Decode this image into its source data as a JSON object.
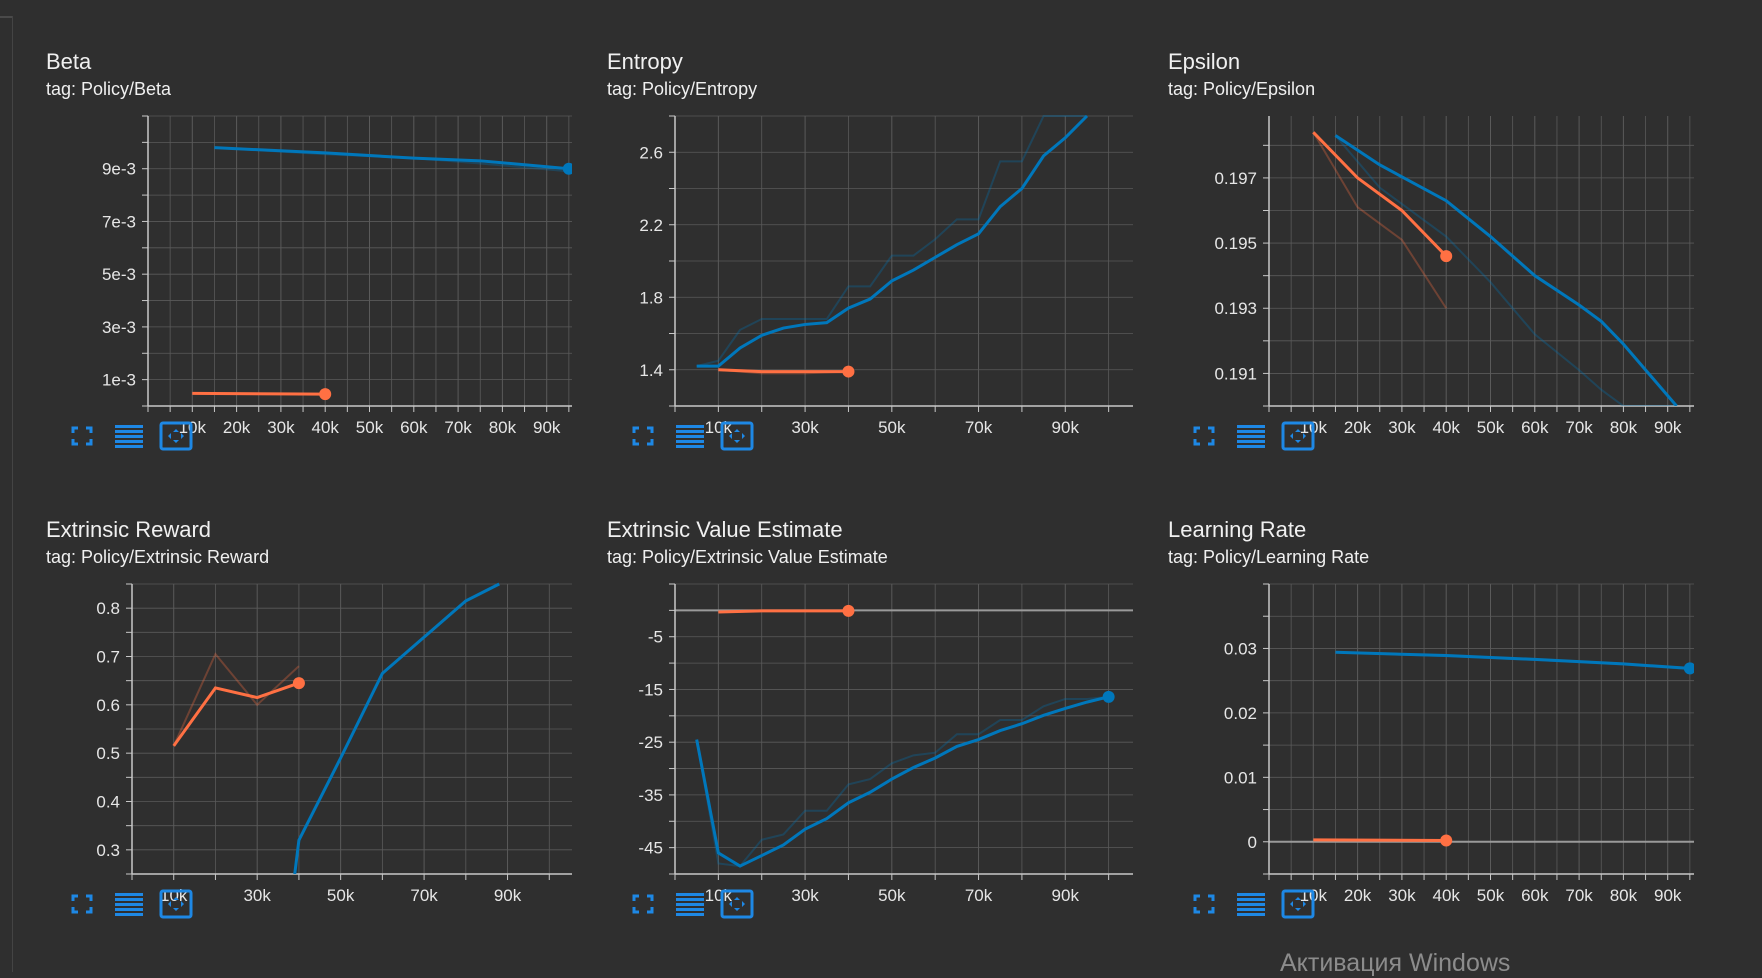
{
  "colors": {
    "orange": "#ff7043",
    "blue": "#0077bb",
    "grid": "#5a5a5a",
    "axis": "#c8c8c8",
    "background": "#2f2f2f"
  },
  "toolbar_icons": [
    "expand-icon",
    "data-list-icon",
    "fit-domain-icon"
  ],
  "watermark": "Активация Windows",
  "chart_data": [
    {
      "type": "line",
      "title": "Beta",
      "tag": "tag: Policy/Beta",
      "xlim": [
        0,
        100000
      ],
      "ylim": [
        0,
        0.011
      ],
      "xticks": [
        10000,
        20000,
        30000,
        40000,
        50000,
        60000,
        70000,
        80000,
        90000
      ],
      "xtick_labels": [
        "10k",
        "20k",
        "30k",
        "40k",
        "50k",
        "60k",
        "70k",
        "80k",
        "90k"
      ],
      "yticks": [
        0.001,
        0.003,
        0.005,
        0.007,
        0.009
      ],
      "ytick_labels": [
        "1e-3",
        "3e-3",
        "5e-3",
        "7e-3",
        "9e-3"
      ],
      "series": [
        {
          "color": "orange",
          "x": [
            10000,
            40000
          ],
          "y": [
            0.00048,
            0.00045
          ],
          "raw_y": [
            0.00048,
            0.00045
          ]
        },
        {
          "color": "blue",
          "x": [
            15000,
            40000,
            60000,
            75000,
            95000
          ],
          "y": [
            0.0098,
            0.0096,
            0.0094,
            0.0093,
            0.009
          ],
          "raw_y": [
            0.0098,
            0.00955,
            0.0094,
            0.0092,
            0.0089
          ]
        }
      ]
    },
    {
      "type": "line",
      "title": "Entropy",
      "tag": "tag: Policy/Entropy",
      "xlim": [
        0,
        110000
      ],
      "ylim": [
        1.2,
        2.8
      ],
      "xticks": [
        10000,
        30000,
        50000,
        70000,
        90000
      ],
      "xtick_labels": [
        "10k",
        "30k",
        "50k",
        "70k",
        "90k"
      ],
      "yticks": [
        1.4,
        1.8,
        2.2,
        2.6
      ],
      "ytick_labels": [
        "1.4",
        "1.8",
        "2.2",
        "2.6"
      ],
      "series": [
        {
          "color": "orange",
          "x": [
            10000,
            20000,
            30000,
            40000
          ],
          "y": [
            1.4,
            1.39,
            1.39,
            1.39
          ],
          "raw_y": [
            1.4,
            1.38,
            1.38,
            1.39
          ]
        },
        {
          "color": "blue",
          "x": [
            5000,
            10000,
            15000,
            20000,
            25000,
            30000,
            35000,
            40000,
            45000,
            50000,
            55000,
            60000,
            65000,
            70000,
            75000,
            80000,
            85000,
            90000,
            95000
          ],
          "y": [
            1.42,
            1.42,
            1.52,
            1.59,
            1.63,
            1.65,
            1.66,
            1.74,
            1.79,
            1.89,
            1.95,
            2.02,
            2.09,
            2.15,
            2.3,
            2.4,
            2.58,
            2.68,
            2.8
          ],
          "raw_y": [
            1.42,
            1.45,
            1.62,
            1.68,
            1.68,
            1.68,
            1.68,
            1.86,
            1.86,
            2.03,
            2.03,
            2.12,
            2.23,
            2.23,
            2.55,
            2.55,
            2.8,
            2.8,
            2.8
          ]
        }
      ]
    },
    {
      "type": "line",
      "title": "Epsilon",
      "tag": "tag: Policy/Epsilon",
      "xlim": [
        0,
        100000
      ],
      "ylim": [
        0.19,
        0.1989
      ],
      "xticks": [
        10000,
        20000,
        30000,
        40000,
        50000,
        60000,
        70000,
        80000,
        90000
      ],
      "xtick_labels": [
        "10k",
        "20k",
        "30k",
        "40k",
        "50k",
        "60k",
        "70k",
        "80k",
        "90k"
      ],
      "yticks": [
        0.191,
        0.193,
        0.195,
        0.197
      ],
      "ytick_labels": [
        "0.191",
        "0.193",
        "0.195",
        "0.197"
      ],
      "series": [
        {
          "color": "orange",
          "x": [
            10000,
            20000,
            30000,
            40000
          ],
          "y": [
            0.1984,
            0.197,
            0.196,
            0.1946
          ],
          "raw_y": [
            0.1984,
            0.1961,
            0.1951,
            0.193
          ]
        },
        {
          "color": "blue",
          "x": [
            15000,
            25000,
            40000,
            50000,
            60000,
            70000,
            75000,
            80000,
            92000
          ],
          "y": [
            0.1983,
            0.1974,
            0.1963,
            0.1952,
            0.194,
            0.1931,
            0.1926,
            0.1919,
            0.19
          ],
          "raw_y": [
            0.1983,
            0.1967,
            0.1952,
            0.1938,
            0.1922,
            0.1911,
            0.1905,
            0.19,
            0.19
          ]
        }
      ]
    },
    {
      "type": "line",
      "title": "Extrinsic Reward",
      "tag": "tag: Policy/Extrinsic Reward",
      "xlim": [
        0,
        110000
      ],
      "ylim": [
        0.25,
        0.85
      ],
      "xticks": [
        10000,
        30000,
        50000,
        70000,
        90000
      ],
      "xtick_labels": [
        "10k",
        "30k",
        "50k",
        "70k",
        "90k"
      ],
      "yticks": [
        0.3,
        0.4,
        0.5,
        0.6,
        0.7,
        0.8
      ],
      "ytick_labels": [
        "0.3",
        "0.4",
        "0.5",
        "0.6",
        "0.7",
        "0.8"
      ],
      "series": [
        {
          "color": "orange",
          "x": [
            10000,
            20000,
            30000,
            40000
          ],
          "y": [
            0.515,
            0.635,
            0.615,
            0.645
          ],
          "raw_y": [
            0.515,
            0.705,
            0.6,
            0.68
          ]
        },
        {
          "color": "blue",
          "x": [
            39000,
            40000,
            50000,
            60000,
            70000,
            80000,
            88000
          ],
          "y": [
            0.25,
            0.32,
            0.49,
            0.665,
            0.74,
            0.815,
            0.85
          ],
          "raw_y": [
            0.25,
            0.32,
            0.49,
            0.665,
            0.74,
            0.815,
            0.85
          ]
        }
      ]
    },
    {
      "type": "line",
      "title": "Extrinsic Value Estimate",
      "tag": "tag: Policy/Extrinsic Value Estimate",
      "xlim": [
        0,
        110000
      ],
      "ylim": [
        -50,
        5
      ],
      "xticks": [
        10000,
        30000,
        50000,
        70000,
        90000
      ],
      "xtick_labels": [
        "10k",
        "30k",
        "50k",
        "70k",
        "90k"
      ],
      "yticks": [
        -45,
        -35,
        -25,
        -15,
        -5
      ],
      "ytick_labels": [
        "-45",
        "-35",
        "-25",
        "-15",
        "-5"
      ],
      "series": [
        {
          "color": "orange",
          "x": [
            10000,
            20000,
            30000,
            40000
          ],
          "y": [
            -0.3,
            -0.1,
            -0.1,
            -0.1
          ],
          "raw_y": [
            -0.3,
            -0.1,
            -0.1,
            -0.1
          ]
        },
        {
          "color": "blue",
          "x": [
            5000,
            10000,
            15000,
            20000,
            25000,
            30000,
            35000,
            40000,
            45000,
            50000,
            55000,
            60000,
            65000,
            70000,
            75000,
            80000,
            85000,
            90000,
            95000,
            100000
          ],
          "y": [
            -24.5,
            -46,
            -48.5,
            -46.5,
            -44.5,
            -41.5,
            -39.5,
            -36.5,
            -34.5,
            -32,
            -29.8,
            -28,
            -25.8,
            -24.5,
            -22.8,
            -21.5,
            -19.9,
            -18.6,
            -17.4,
            -16.4
          ],
          "raw_y": [
            -24.5,
            -48,
            -48.5,
            -43.5,
            -42.5,
            -38,
            -38,
            -33,
            -32,
            -29,
            -27.5,
            -27,
            -23.5,
            -23.5,
            -20.8,
            -20.8,
            -18.2,
            -16.8,
            -16.8,
            -16.4
          ]
        }
      ]
    },
    {
      "type": "line",
      "title": "Learning Rate",
      "tag": "tag: Policy/Learning Rate",
      "xlim": [
        0,
        100000
      ],
      "ylim": [
        -0.005,
        0.04
      ],
      "xticks": [
        10000,
        20000,
        30000,
        40000,
        50000,
        60000,
        70000,
        80000,
        90000
      ],
      "xtick_labels": [
        "10k",
        "20k",
        "30k",
        "40k",
        "50k",
        "60k",
        "70k",
        "80k",
        "90k"
      ],
      "yticks": [
        0,
        0.01,
        0.02,
        0.03
      ],
      "ytick_labels": [
        "0",
        "0.01",
        "0.02",
        "0.03"
      ],
      "series": [
        {
          "color": "orange",
          "x": [
            10000,
            40000
          ],
          "y": [
            0.0003,
            0.0002
          ],
          "raw_y": [
            0.0003,
            0.0002
          ]
        },
        {
          "color": "blue",
          "x": [
            15000,
            40000,
            60000,
            80000,
            95000
          ],
          "y": [
            0.0294,
            0.0289,
            0.0283,
            0.0276,
            0.0269
          ],
          "raw_y": [
            0.0294,
            0.0288,
            0.0282,
            0.0275,
            0.0268
          ]
        }
      ]
    }
  ]
}
